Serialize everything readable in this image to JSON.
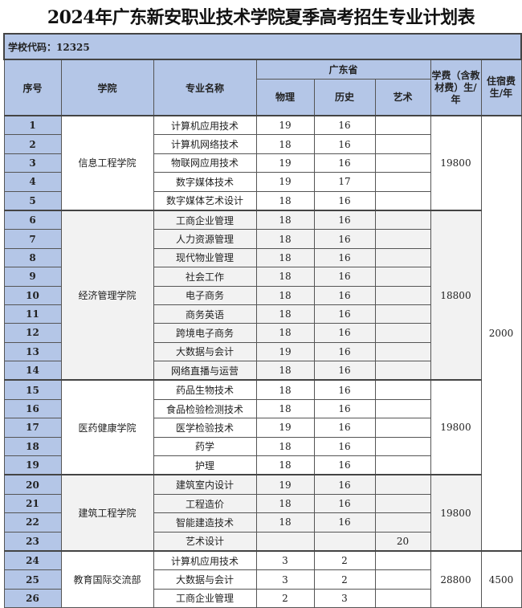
{
  "title": "2024年广东新安职业技术学院夏季高考招生专业计划表",
  "school_code": "学校代码：12325",
  "header": {
    "seq": "序号",
    "college": "学院",
    "major": "专业名称",
    "province": "广东省",
    "physics": "物理",
    "history": "历史",
    "art": "艺术",
    "fee": "学费（含教材费）生/年",
    "dorm": "住宿费生/年"
  },
  "dorm_fee_main": "2000",
  "groups": [
    {
      "college": "信息工程学院",
      "fee": "19800",
      "shade": false,
      "rows": [
        [
          "1",
          "计算机应用技术",
          "19",
          "16",
          ""
        ],
        [
          "2",
          "计算机网络技术",
          "18",
          "16",
          ""
        ],
        [
          "3",
          "物联网应用技术",
          "19",
          "16",
          ""
        ],
        [
          "4",
          "数字媒体技术",
          "19",
          "17",
          ""
        ],
        [
          "5",
          "数字媒体艺术设计",
          "18",
          "16",
          ""
        ]
      ]
    },
    {
      "college": "经济管理学院",
      "fee": "18800",
      "shade": true,
      "rows": [
        [
          "6",
          "工商企业管理",
          "18",
          "16",
          ""
        ],
        [
          "7",
          "人力资源管理",
          "18",
          "16",
          ""
        ],
        [
          "8",
          "现代物业管理",
          "18",
          "16",
          ""
        ],
        [
          "9",
          "社会工作",
          "18",
          "16",
          ""
        ],
        [
          "10",
          "电子商务",
          "18",
          "16",
          ""
        ],
        [
          "11",
          "商务英语",
          "18",
          "16",
          ""
        ],
        [
          "12",
          "跨境电子商务",
          "18",
          "16",
          ""
        ],
        [
          "13",
          "大数据与会计",
          "19",
          "16",
          ""
        ],
        [
          "14",
          "网络直播与运营",
          "18",
          "16",
          ""
        ]
      ]
    },
    {
      "college": "医药健康学院",
      "fee": "19800",
      "shade": false,
      "rows": [
        [
          "15",
          "药品生物技术",
          "18",
          "16",
          ""
        ],
        [
          "16",
          "食品检验检测技术",
          "18",
          "16",
          ""
        ],
        [
          "17",
          "医学检验技术",
          "19",
          "16",
          ""
        ],
        [
          "18",
          "药学",
          "18",
          "16",
          ""
        ],
        [
          "19",
          "护理",
          "18",
          "16",
          ""
        ]
      ]
    },
    {
      "college": "建筑工程学院",
      "fee": "19800",
      "shade": true,
      "rows": [
        [
          "20",
          "建筑室内设计",
          "19",
          "16",
          ""
        ],
        [
          "21",
          "工程造价",
          "18",
          "16",
          ""
        ],
        [
          "22",
          "智能建造技术",
          "18",
          "16",
          ""
        ],
        [
          "23",
          "艺术设计",
          "",
          "",
          "20"
        ]
      ]
    },
    {
      "college": "教育国际交流部",
      "fee": "28800",
      "dorm": "4500",
      "shade": false,
      "rows": [
        [
          "24",
          "计算机应用技术",
          "3",
          "2",
          ""
        ],
        [
          "25",
          "大数据与会计",
          "3",
          "2",
          ""
        ],
        [
          "26",
          "工商企业管理",
          "2",
          "3",
          ""
        ]
      ]
    }
  ]
}
